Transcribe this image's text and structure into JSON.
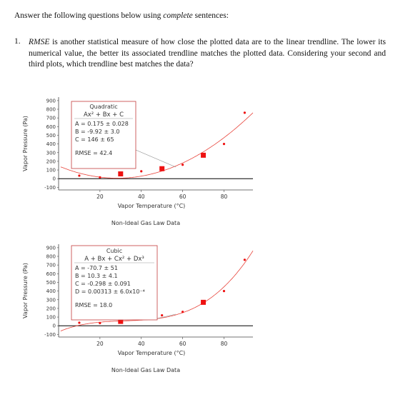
{
  "intro_pre": "Answer the following questions below using ",
  "intro_em": "complete",
  "intro_post": " sentences:",
  "question": {
    "number": "1.",
    "term": "RMSE",
    "text_after_term": " is another statistical measure of how close the plotted data are to the linear trendline. The lower its numerical value, the better its associated trendline matches the plotted data. Considering your second and third plots, which trendline best matches the data?"
  },
  "colors": {
    "fit_line": "#e8433a",
    "marker": "#ee1111",
    "box_border": "#c43c3c",
    "axis": "#444444"
  },
  "chart_data": [
    {
      "type": "scatter",
      "title": "Non-Ideal Gas Law Data",
      "xlabel": "Vapor Temperature (°C)",
      "ylabel": "Vapor Pressure (Pa)",
      "xlim": [
        0,
        94
      ],
      "ylim": [
        -130,
        940
      ],
      "x_ticks": [
        "20",
        "40",
        "60",
        "80"
      ],
      "y_ticks": [
        "900",
        "800",
        "700",
        "600",
        "500",
        "400",
        "300",
        "200",
        "100",
        "0",
        "-100"
      ],
      "series": [
        {
          "x": [
            10,
            20,
            30,
            40,
            50,
            60,
            70,
            80,
            90
          ],
          "y": [
            35,
            15,
            55,
            85,
            115,
            160,
            270,
            400,
            760
          ],
          "highlight": [
            false,
            false,
            true,
            false,
            true,
            false,
            true,
            false,
            false
          ]
        }
      ],
      "fit": {
        "a": 146,
        "b": -9.92,
        "c": 0.175,
        "d": 0
      },
      "fit_box": {
        "title": "Quadratic",
        "formula": "Ax² + Bx + C",
        "params": [
          "A = 0.175 ± 0.028",
          "B = -9.92 ± 3.0",
          "C = 146   ± 65"
        ],
        "rmse": "RMSE = 42.4"
      }
    },
    {
      "type": "scatter",
      "title": "Non-Ideal Gas Law Data",
      "xlabel": "Vapor Temperature (°C)",
      "ylabel": "Vapor Pressure (Pa)",
      "xlim": [
        0,
        94
      ],
      "ylim": [
        -130,
        940
      ],
      "x_ticks": [
        "20",
        "40",
        "60",
        "80"
      ],
      "y_ticks": [
        "900",
        "800",
        "700",
        "600",
        "500",
        "400",
        "300",
        "200",
        "100",
        "0",
        "-100"
      ],
      "series": [
        {
          "x": [
            10,
            20,
            30,
            40,
            50,
            60,
            70,
            80,
            90
          ],
          "y": [
            35,
            30,
            50,
            80,
            120,
            160,
            270,
            400,
            760
          ],
          "highlight": [
            false,
            false,
            true,
            false,
            false,
            false,
            true,
            false,
            false
          ]
        }
      ],
      "fit": {
        "a": -70.7,
        "b": 10.3,
        "c": -0.298,
        "d": 0.00313
      },
      "fit_box": {
        "title": "Cubic",
        "formula": "A + Bx + Cx² + Dx³",
        "params": [
          "A = -70.7     ± 51",
          "B = 10.3      ± 4.1",
          "C = -0.298   ± 0.091",
          "D = 0.00313 ± 6.0x10⁻⁴"
        ],
        "rmse": "RMSE = 18.0"
      }
    }
  ]
}
